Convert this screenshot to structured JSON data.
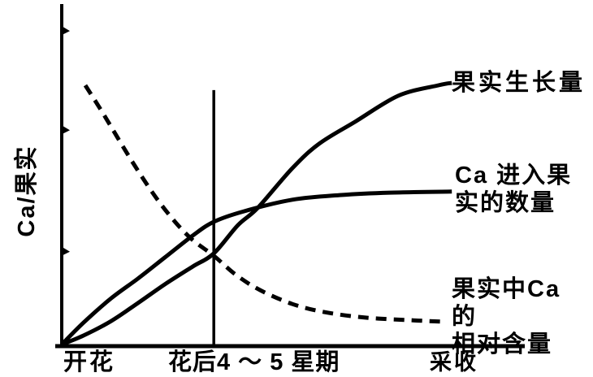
{
  "figure": {
    "background_color": "#ffffff",
    "ink_color": "#000000",
    "description": "Scanned textbook line chart of fruit growth and calcium dynamics from flowering to harvest"
  },
  "chart_data": {
    "type": "line",
    "title": "",
    "xlabel": "",
    "ylabel": "Ca/果实",
    "grid": false,
    "axes": {
      "y_ticks_pct": [
        27.8,
        63.6,
        92.8
      ],
      "x_axis_labels": [
        {
          "label": "开花",
          "x_pct": 1
        },
        {
          "label": "花后4 ～ 5 星期",
          "x_pct": 23
        },
        {
          "label": "采收",
          "x_pct": 80
        }
      ]
    },
    "series": [
      {
        "key": "fruit-growth",
        "name": "果实生长量",
        "display_label": "果实生长量",
        "line_style": "solid",
        "trend": "S-shaped increase, plateaus near harvest",
        "points_pct": [
          [
            0,
            0.5
          ],
          [
            4.7,
            3.1
          ],
          [
            10.7,
            7.4
          ],
          [
            16.5,
            12.7
          ],
          [
            22.3,
            18.2
          ],
          [
            28.3,
            23.4
          ],
          [
            32.9,
            27.3
          ],
          [
            38.1,
            35.6
          ],
          [
            42.4,
            40.7
          ],
          [
            49.9,
            52.4
          ],
          [
            55.7,
            59.6
          ],
          [
            63.4,
            66.0
          ],
          [
            72.8,
            73.7
          ],
          [
            81.5,
            76.8
          ],
          [
            84.4,
            77.5
          ]
        ]
      },
      {
        "key": "ca-into-fruit",
        "name": "Ca进入果实的数量",
        "display_label": "Ca 进入果\n实的数量",
        "line_style": "solid",
        "trend": "rapid early rise, saturating plateau",
        "points_pct": [
          [
            0,
            0.5
          ],
          [
            4.7,
            6.9
          ],
          [
            10.7,
            14.1
          ],
          [
            16.5,
            19.9
          ],
          [
            22.3,
            26.1
          ],
          [
            28.3,
            32.5
          ],
          [
            32.9,
            36.6
          ],
          [
            39.4,
            39.7
          ],
          [
            49.9,
            43.1
          ],
          [
            60.5,
            44.5
          ],
          [
            71.0,
            45.2
          ],
          [
            84.4,
            45.5
          ]
        ]
      },
      {
        "key": "ca-relative-content",
        "name": "果实中Ca的相对含量",
        "display_label": "果实中Ca 的\n相对含量",
        "line_style": "dashed",
        "trend": "steep early decline, levels off low",
        "points_pct": [
          [
            5.1,
            76.8
          ],
          [
            9.0,
            68.4
          ],
          [
            14.8,
            55.3
          ],
          [
            20.0,
            44.5
          ],
          [
            24.4,
            36.8
          ],
          [
            28.3,
            31.3
          ],
          [
            32.9,
            26.6
          ],
          [
            37.6,
            21.1
          ],
          [
            42.9,
            16.5
          ],
          [
            49.9,
            12.4
          ],
          [
            56.9,
            10.0
          ],
          [
            65.7,
            8.4
          ],
          [
            74.5,
            7.7
          ],
          [
            82.4,
            7.2
          ]
        ]
      }
    ],
    "annotations": [
      {
        "type": "vline",
        "meaning": "花后4～5星期 marker",
        "x_pct": 32.9,
        "y_from_pct": 0,
        "y_to_pct": 75.4
      }
    ]
  }
}
